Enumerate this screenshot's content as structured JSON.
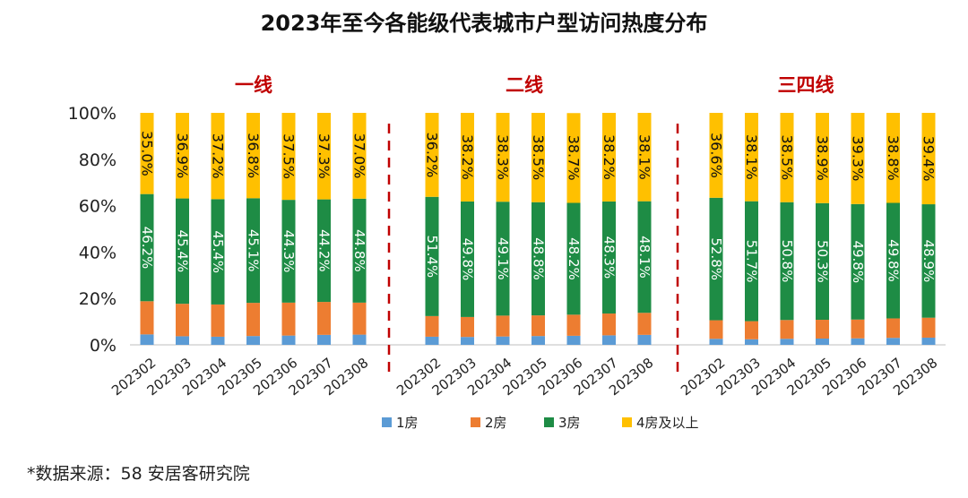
{
  "chart_data": {
    "type": "bar",
    "stacked": true,
    "title": "2023年至今各能级代表城市户型访问热度分布",
    "source": "*数据来源：58 安居客研究院",
    "yticks": [
      "0%",
      "20%",
      "40%",
      "60%",
      "80%",
      "100%"
    ],
    "ylim": [
      0,
      100
    ],
    "legend": [
      "1房",
      "2房",
      "3房",
      "4房及以上"
    ],
    "colors": {
      "r1": "#5b9bd5",
      "r2": "#ed7d31",
      "r3": "#1e8c45",
      "r4": "#ffc000",
      "group_label": "#c00000"
    },
    "groups": [
      {
        "name": "一线",
        "categories": [
          "202302",
          "202303",
          "202304",
          "202305",
          "202306",
          "202307",
          "202308"
        ],
        "r1": [
          4.5,
          3.7,
          3.5,
          3.8,
          4.0,
          4.3,
          4.4
        ],
        "r2": [
          14.3,
          14.0,
          13.9,
          14.3,
          14.2,
          14.2,
          13.8
        ],
        "r3": [
          46.2,
          45.4,
          45.4,
          45.1,
          44.3,
          44.2,
          44.8
        ],
        "r4": [
          35.0,
          36.9,
          37.2,
          36.8,
          37.5,
          37.3,
          37.0
        ],
        "r3_labels": [
          "46.2%",
          "45.4%",
          "45.4%",
          "45.1%",
          "44.3%",
          "44.2%",
          "44.8%"
        ],
        "r4_labels": [
          "35.0%",
          "36.9%",
          "37.2%",
          "36.8%",
          "37.5%",
          "37.3%",
          "37.0%"
        ]
      },
      {
        "name": "二线",
        "categories": [
          "202302",
          "202303",
          "202304",
          "202305",
          "202306",
          "202307",
          "202308"
        ],
        "r1": [
          3.5,
          3.4,
          3.6,
          3.8,
          3.9,
          4.1,
          4.3
        ],
        "r2": [
          8.9,
          8.6,
          9.0,
          8.9,
          9.1,
          9.4,
          9.5
        ],
        "r3": [
          51.4,
          49.8,
          49.1,
          48.8,
          48.2,
          48.3,
          48.1
        ],
        "r4": [
          36.2,
          38.2,
          38.3,
          38.5,
          38.7,
          38.2,
          38.1
        ],
        "r3_labels": [
          "51.4%",
          "49.8%",
          "49.1%",
          "48.8%",
          "48.2%",
          "48.3%",
          "48.1%"
        ],
        "r4_labels": [
          "36.2%",
          "38.2%",
          "38.3%",
          "38.5%",
          "38.7%",
          "38.2%",
          "38.1%"
        ]
      },
      {
        "name": "三四线",
        "categories": [
          "202302",
          "202303",
          "202304",
          "202305",
          "202306",
          "202307",
          "202308"
        ],
        "r1": [
          2.6,
          2.4,
          2.6,
          2.7,
          2.8,
          3.0,
          3.1
        ],
        "r2": [
          8.0,
          7.8,
          8.1,
          8.1,
          8.1,
          8.4,
          8.6
        ],
        "r3": [
          52.8,
          51.7,
          50.8,
          50.3,
          49.8,
          49.8,
          48.9
        ],
        "r4": [
          36.6,
          38.1,
          38.5,
          38.9,
          39.3,
          38.8,
          39.4
        ],
        "r3_labels": [
          "52.8%",
          "51.7%",
          "50.8%",
          "50.3%",
          "49.8%",
          "49.8%",
          "48.9%"
        ],
        "r4_labels": [
          "36.6%",
          "38.1%",
          "38.5%",
          "38.9%",
          "39.3%",
          "38.8%",
          "39.4%"
        ]
      }
    ]
  }
}
